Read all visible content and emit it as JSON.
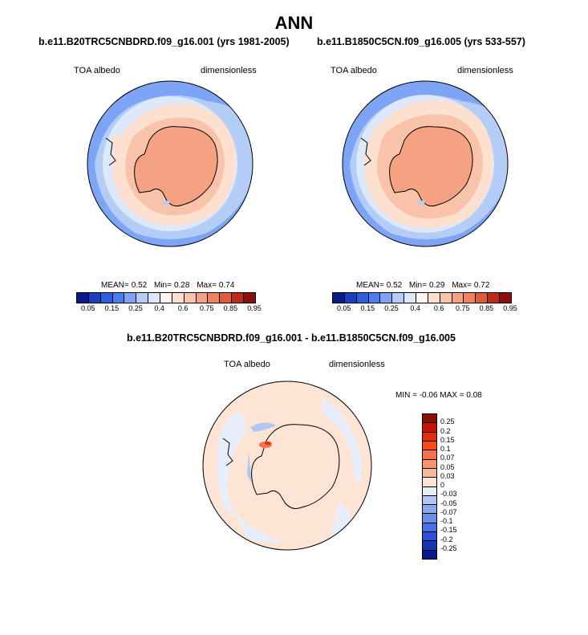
{
  "title": "ANN",
  "panels": [
    {
      "case_title": "b.e11.B20TRC5CNBDRD.f09_g16.001 (yrs 1981-2005)",
      "variable": "TOA albedo",
      "units": "dimensionless",
      "stats": {
        "mean_label": "MEAN=",
        "mean": "0.52",
        "min_label": "Min=",
        "min": "0.28",
        "max_label": "Max=",
        "max": "0.74"
      }
    },
    {
      "case_title": "b.e11.B1850C5CN.f09_g16.005 (yrs 533-557)",
      "variable": "TOA albedo",
      "units": "dimensionless",
      "stats": {
        "mean_label": "MEAN=",
        "mean": "0.52",
        "min_label": "Min=",
        "min": "0.29",
        "max_label": "Max=",
        "max": "0.72"
      }
    }
  ],
  "difference": {
    "case_title": "b.e11.B20TRC5CNBDRD.f09_g16.001 - b.e11.B1850C5CN.f09_g16.005",
    "variable": "TOA albedo",
    "units": "dimensionless",
    "stats_text": "MIN =  -0.06 MAX =  0.08"
  },
  "colorbar_main": {
    "colors": [
      "#0a1a8c",
      "#1a3ec2",
      "#2c5ee0",
      "#4a7ef0",
      "#7ea4f5",
      "#b4cdf6",
      "#dde8fb",
      "#fff5ee",
      "#fde0cf",
      "#f8c3a8",
      "#f5a283",
      "#f08260",
      "#e05a3c",
      "#c02a1a",
      "#8a1008"
    ],
    "ticks": [
      "0.05",
      "0.15",
      "0.25",
      "0.4",
      "0.6",
      "0.75",
      "0.85",
      "0.95"
    ]
  },
  "colorbar_diff": {
    "colors": [
      "#8a1008",
      "#c41508",
      "#e62a0c",
      "#f84a18",
      "#f7704a",
      "#f7946e",
      "#f9b89a",
      "#fde4d4",
      "#e6eefb",
      "#b2c6f3",
      "#8aa8ef",
      "#6a90ec",
      "#4a70e6",
      "#2c50d8",
      "#1a34b8",
      "#0a1a8c"
    ],
    "ticks": [
      "0.25",
      "0.2",
      "0.15",
      "0.1",
      "0.07",
      "0.05",
      "0.03",
      "0",
      "-0.03",
      "-0.05",
      "-0.07",
      "-0.1",
      "-0.15",
      "-0.2",
      "-0.25"
    ]
  }
}
